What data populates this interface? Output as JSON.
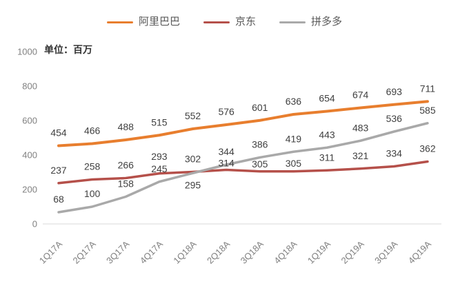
{
  "chart_data": {
    "type": "line",
    "title": "",
    "unit_label": "单位：百万",
    "categories": [
      "1Q17A",
      "2Q17A",
      "3Q17A",
      "4Q17A",
      "1Q18A",
      "2Q18A",
      "3Q18A",
      "4Q18A",
      "1Q19A",
      "2Q19A",
      "3Q19A",
      "4Q19A"
    ],
    "series": [
      {
        "name": "阿里巴巴",
        "color": "#E87E2E",
        "values": [
          454,
          466,
          488,
          515,
          552,
          576,
          601,
          636,
          654,
          674,
          693,
          711
        ]
      },
      {
        "name": "京东",
        "color": "#B5504A",
        "values": [
          237,
          258,
          266,
          293,
          302,
          314,
          305,
          305,
          311,
          321,
          334,
          362
        ]
      },
      {
        "name": "拼多多",
        "color": "#A9A9A9",
        "values": [
          68,
          100,
          158,
          245,
          295,
          344,
          386,
          419,
          443,
          483,
          536,
          585
        ]
      }
    ],
    "xlabel": "",
    "ylabel": "",
    "ylim": [
      0,
      1000
    ],
    "yticks": [
      0,
      200,
      400,
      600,
      800,
      1000
    ],
    "grid": false,
    "legend_position": "top",
    "data_labels": true,
    "label_dy_overrides": {
      "1": {
        "3": -20,
        "5": -5,
        "6": -6,
        "7": -7
      },
      "2": {
        "4": 22
      }
    }
  },
  "colors": {
    "background": "#FFFFFF",
    "axis_text": "#808080",
    "data_label": "#404040",
    "axis_line": "#D9D9D9",
    "legend_text": "#595959"
  }
}
